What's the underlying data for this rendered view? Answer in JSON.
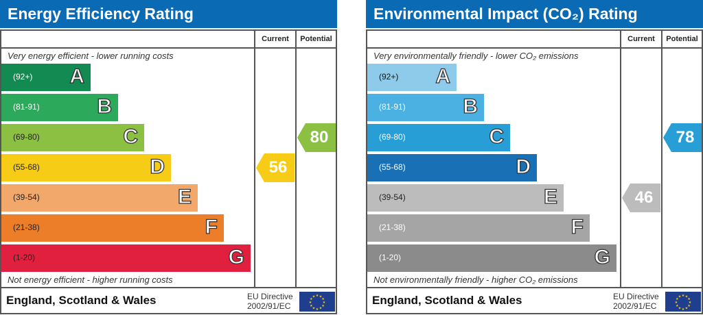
{
  "panels": [
    {
      "title": "Energy Efficiency Rating",
      "col_current": "Current",
      "col_potential": "Potential",
      "top_caption": "Very energy efficient - lower running costs",
      "bottom_caption": "Not energy efficient - higher running costs",
      "footer": "England, Scotland & Wales",
      "directive_line1": "EU Directive",
      "directive_line2": "2002/91/EC",
      "bands": [
        {
          "range": "(92+)",
          "letter": "A",
          "color": "#138a52",
          "text": "#fff"
        },
        {
          "range": "(81-91)",
          "letter": "B",
          "color": "#2ca95a",
          "text": "#fff"
        },
        {
          "range": "(69-80)",
          "letter": "C",
          "color": "#8cc043",
          "text": "#222"
        },
        {
          "range": "(55-68)",
          "letter": "D",
          "color": "#f6cc17",
          "text": "#222"
        },
        {
          "range": "(39-54)",
          "letter": "E",
          "color": "#f2a86a",
          "text": "#222"
        },
        {
          "range": "(21-38)",
          "letter": "F",
          "color": "#ec7e29",
          "text": "#222"
        },
        {
          "range": "(1-20)",
          "letter": "G",
          "color": "#e1203f",
          "text": "#222"
        }
      ],
      "current": {
        "value": "56",
        "band": "D",
        "color": "#f6cc17"
      },
      "potential": {
        "value": "80",
        "band": "C",
        "color": "#8cc043"
      }
    },
    {
      "title": "Environmental Impact (CO₂) Rating",
      "col_current": "Current",
      "col_potential": "Potential",
      "top_caption": "Very environmentally friendly - lower CO₂ emissions",
      "bottom_caption": "Not environmentally friendly - higher CO₂ emissions",
      "footer": "England, Scotland & Wales",
      "directive_line1": "EU Directive",
      "directive_line2": "2002/91/EC",
      "bands": [
        {
          "range": "(92+)",
          "letter": "A",
          "color": "#8ecbea",
          "text": "#111"
        },
        {
          "range": "(81-91)",
          "letter": "B",
          "color": "#4ab1e2",
          "text": "#fff"
        },
        {
          "range": "(69-80)",
          "letter": "C",
          "color": "#279ed6",
          "text": "#fff"
        },
        {
          "range": "(55-68)",
          "letter": "D",
          "color": "#1a70b5",
          "text": "#fff"
        },
        {
          "range": "(39-54)",
          "letter": "E",
          "color": "#bcbcbc",
          "text": "#222"
        },
        {
          "range": "(21-38)",
          "letter": "F",
          "color": "#a5a5a5",
          "text": "#fff"
        },
        {
          "range": "(1-20)",
          "letter": "G",
          "color": "#8b8b8b",
          "text": "#fff"
        }
      ],
      "current": {
        "value": "46",
        "band": "E",
        "color": "#bcbcbc"
      },
      "potential": {
        "value": "78",
        "band": "C",
        "color": "#279ed6"
      }
    }
  ]
}
